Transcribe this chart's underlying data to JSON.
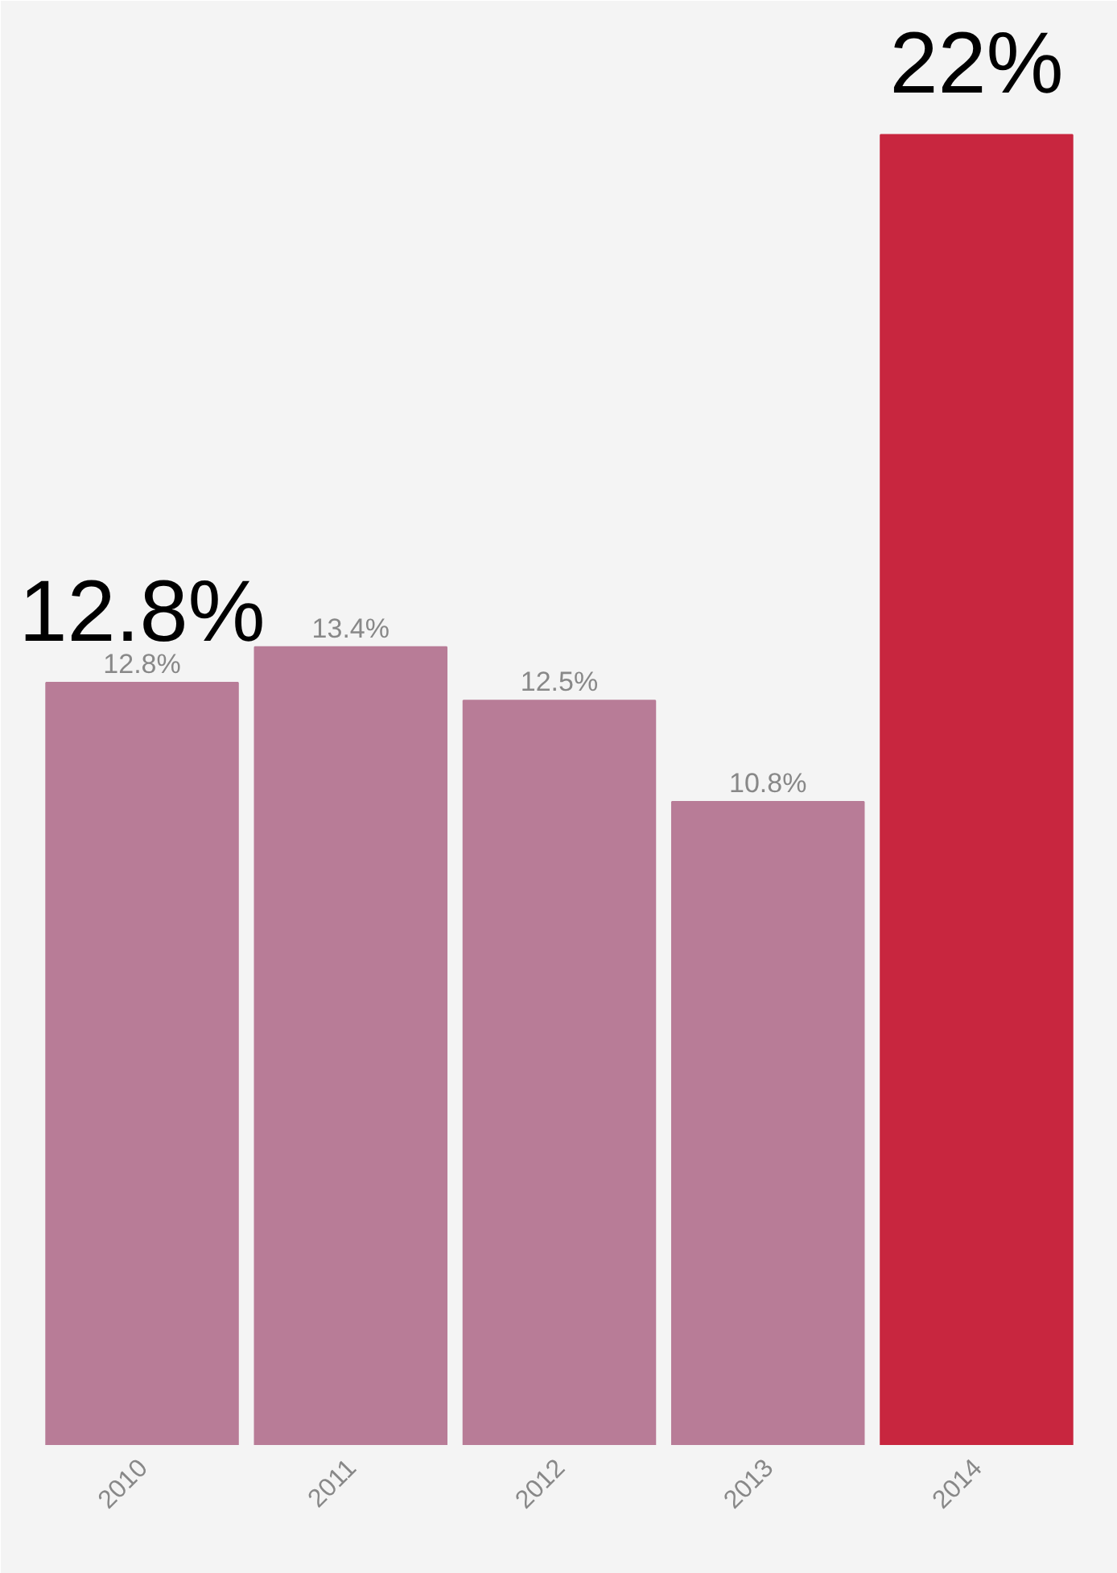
{
  "chart_data": {
    "type": "bar",
    "categories": [
      "2010",
      "2011",
      "2012",
      "2013",
      "2014"
    ],
    "values": [
      12.8,
      13.4,
      12.5,
      10.8,
      22
    ],
    "colors": [
      "#b87c97",
      "#b87c97",
      "#b87c97",
      "#b87c97",
      "#c8263f"
    ],
    "value_labels": [
      "12.8%",
      "13.4%",
      "12.5%",
      "10.8%",
      null
    ],
    "annotations": [
      {
        "text": "12.8%",
        "x": "2010",
        "y": 12.8
      },
      {
        "text": "22%",
        "x": "2014",
        "y": 22
      }
    ],
    "tick_labels": "x",
    "grid": false
  }
}
